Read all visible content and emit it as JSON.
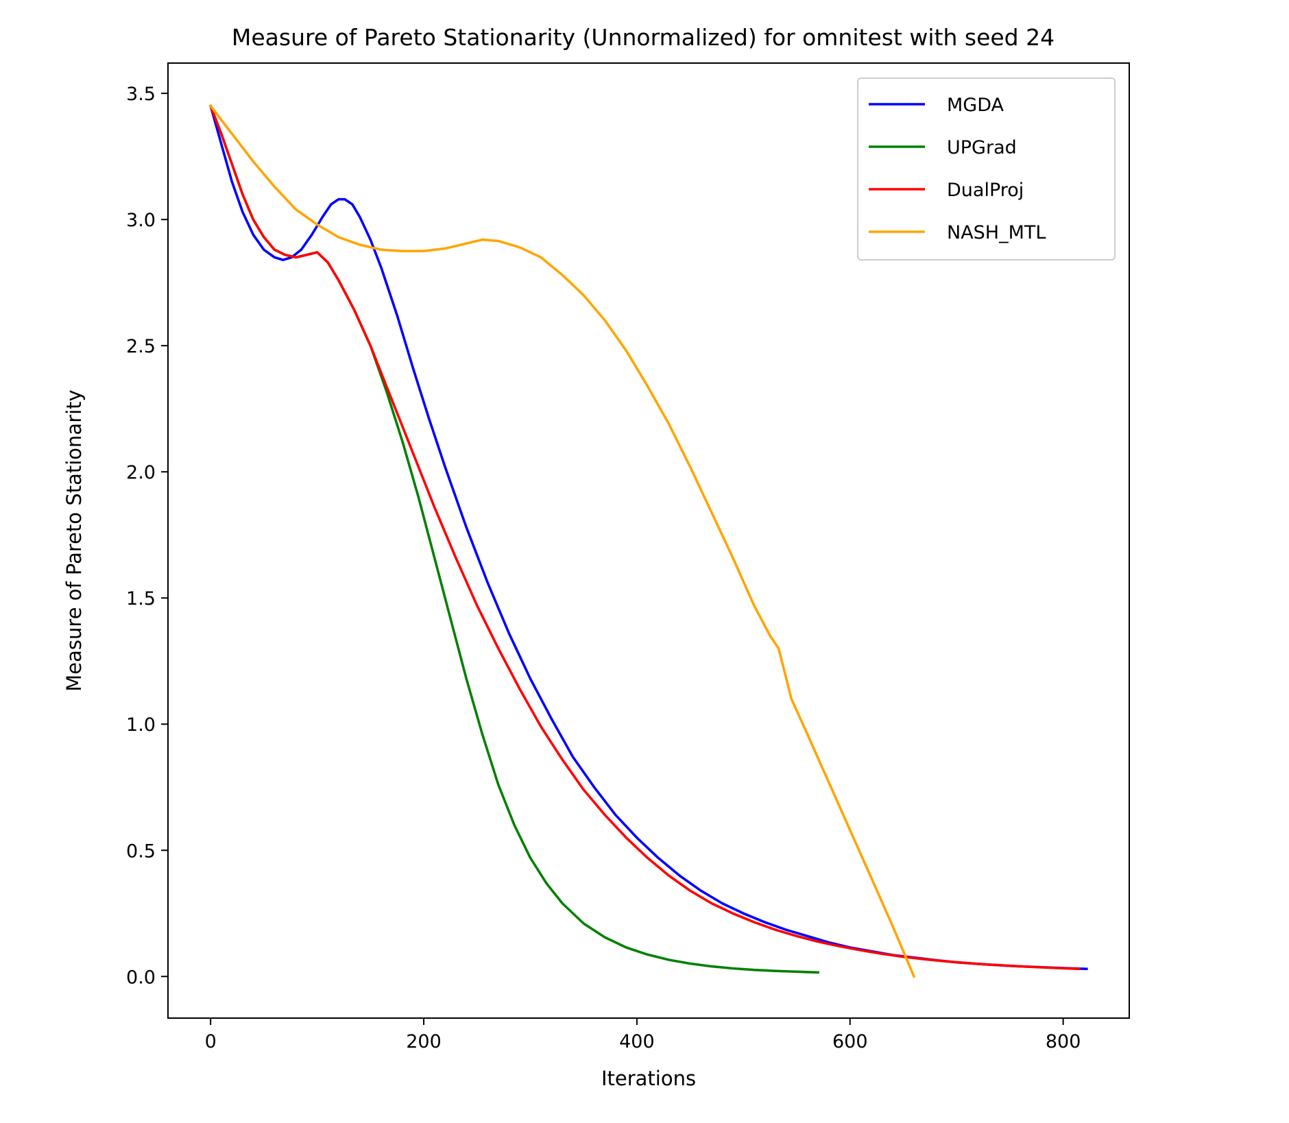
{
  "chart_data": {
    "type": "line",
    "title": "Measure of Pareto Stationarity (Unnormalized) for omnitest with seed 24",
    "xlabel": "Iterations",
    "ylabel": "Measure of Pareto Stationarity",
    "xlim": [
      -40,
      862
    ],
    "ylim": [
      -0.165,
      3.62
    ],
    "xticks": [
      0,
      200,
      400,
      600,
      800
    ],
    "xtick_labels": [
      "0",
      "200",
      "400",
      "600",
      "800"
    ],
    "yticks": [
      0.0,
      0.5,
      1.0,
      1.5,
      2.0,
      2.5,
      3.0,
      3.5
    ],
    "ytick_labels": [
      "0.0",
      "0.5",
      "1.0",
      "1.5",
      "2.0",
      "2.5",
      "3.0",
      "3.5"
    ],
    "grid": false,
    "legend_position": "top-right",
    "series": [
      {
        "name": "MGDA",
        "color": "#0000ff",
        "points": [
          [
            0,
            3.45
          ],
          [
            10,
            3.3
          ],
          [
            20,
            3.15
          ],
          [
            30,
            3.03
          ],
          [
            40,
            2.94
          ],
          [
            50,
            2.88
          ],
          [
            60,
            2.85
          ],
          [
            68,
            2.84
          ],
          [
            76,
            2.85
          ],
          [
            85,
            2.88
          ],
          [
            95,
            2.94
          ],
          [
            105,
            3.01
          ],
          [
            113,
            3.06
          ],
          [
            120,
            3.08
          ],
          [
            126,
            3.08
          ],
          [
            133,
            3.06
          ],
          [
            140,
            3.01
          ],
          [
            150,
            2.92
          ],
          [
            160,
            2.81
          ],
          [
            175,
            2.62
          ],
          [
            190,
            2.41
          ],
          [
            205,
            2.21
          ],
          [
            220,
            2.02
          ],
          [
            240,
            1.78
          ],
          [
            260,
            1.56
          ],
          [
            280,
            1.36
          ],
          [
            300,
            1.18
          ],
          [
            320,
            1.02
          ],
          [
            340,
            0.87
          ],
          [
            360,
            0.75
          ],
          [
            380,
            0.64
          ],
          [
            400,
            0.55
          ],
          [
            420,
            0.47
          ],
          [
            440,
            0.4
          ],
          [
            460,
            0.34
          ],
          [
            480,
            0.29
          ],
          [
            500,
            0.25
          ],
          [
            520,
            0.215
          ],
          [
            540,
            0.185
          ],
          [
            560,
            0.16
          ],
          [
            580,
            0.135
          ],
          [
            600,
            0.115
          ],
          [
            620,
            0.1
          ],
          [
            640,
            0.085
          ],
          [
            660,
            0.075
          ],
          [
            680,
            0.065
          ],
          [
            700,
            0.056
          ],
          [
            730,
            0.047
          ],
          [
            760,
            0.04
          ],
          [
            790,
            0.035
          ],
          [
            822,
            0.03
          ]
        ]
      },
      {
        "name": "UPGrad",
        "color": "#008000",
        "points": [
          [
            0,
            3.45
          ],
          [
            10,
            3.34
          ],
          [
            20,
            3.22
          ],
          [
            30,
            3.1
          ],
          [
            40,
            3.0
          ],
          [
            50,
            2.93
          ],
          [
            60,
            2.88
          ],
          [
            70,
            2.86
          ],
          [
            80,
            2.85
          ],
          [
            90,
            2.86
          ],
          [
            100,
            2.87
          ],
          [
            110,
            2.83
          ],
          [
            120,
            2.76
          ],
          [
            135,
            2.64
          ],
          [
            150,
            2.5
          ],
          [
            165,
            2.32
          ],
          [
            180,
            2.12
          ],
          [
            195,
            1.9
          ],
          [
            210,
            1.66
          ],
          [
            225,
            1.42
          ],
          [
            240,
            1.18
          ],
          [
            255,
            0.96
          ],
          [
            270,
            0.76
          ],
          [
            285,
            0.6
          ],
          [
            300,
            0.47
          ],
          [
            315,
            0.37
          ],
          [
            330,
            0.29
          ],
          [
            350,
            0.21
          ],
          [
            370,
            0.155
          ],
          [
            390,
            0.115
          ],
          [
            410,
            0.087
          ],
          [
            430,
            0.066
          ],
          [
            450,
            0.051
          ],
          [
            470,
            0.04
          ],
          [
            490,
            0.032
          ],
          [
            510,
            0.026
          ],
          [
            530,
            0.022
          ],
          [
            550,
            0.019
          ],
          [
            570,
            0.016
          ]
        ]
      },
      {
        "name": "DualProj",
        "color": "#ff0000",
        "points": [
          [
            0,
            3.45
          ],
          [
            10,
            3.34
          ],
          [
            20,
            3.22
          ],
          [
            30,
            3.1
          ],
          [
            40,
            3.0
          ],
          [
            50,
            2.93
          ],
          [
            60,
            2.88
          ],
          [
            70,
            2.86
          ],
          [
            80,
            2.85
          ],
          [
            90,
            2.86
          ],
          [
            100,
            2.87
          ],
          [
            110,
            2.83
          ],
          [
            120,
            2.76
          ],
          [
            135,
            2.64
          ],
          [
            150,
            2.5
          ],
          [
            165,
            2.34
          ],
          [
            180,
            2.18
          ],
          [
            195,
            2.02
          ],
          [
            210,
            1.86
          ],
          [
            230,
            1.66
          ],
          [
            250,
            1.47
          ],
          [
            270,
            1.3
          ],
          [
            290,
            1.14
          ],
          [
            310,
            0.99
          ],
          [
            330,
            0.86
          ],
          [
            350,
            0.74
          ],
          [
            370,
            0.64
          ],
          [
            390,
            0.55
          ],
          [
            410,
            0.47
          ],
          [
            430,
            0.4
          ],
          [
            450,
            0.34
          ],
          [
            470,
            0.29
          ],
          [
            490,
            0.25
          ],
          [
            510,
            0.215
          ],
          [
            530,
            0.185
          ],
          [
            550,
            0.16
          ],
          [
            570,
            0.138
          ],
          [
            590,
            0.12
          ],
          [
            610,
            0.104
          ],
          [
            630,
            0.09
          ],
          [
            650,
            0.078
          ],
          [
            670,
            0.068
          ],
          [
            690,
            0.06
          ],
          [
            720,
            0.05
          ],
          [
            750,
            0.042
          ],
          [
            780,
            0.036
          ],
          [
            815,
            0.03
          ]
        ]
      },
      {
        "name": "NASH_MTL",
        "color": "#ffa500",
        "points": [
          [
            0,
            3.45
          ],
          [
            20,
            3.34
          ],
          [
            40,
            3.23
          ],
          [
            60,
            3.13
          ],
          [
            80,
            3.04
          ],
          [
            100,
            2.98
          ],
          [
            120,
            2.93
          ],
          [
            140,
            2.9
          ],
          [
            160,
            2.88
          ],
          [
            180,
            2.875
          ],
          [
            200,
            2.875
          ],
          [
            220,
            2.885
          ],
          [
            240,
            2.905
          ],
          [
            255,
            2.92
          ],
          [
            270,
            2.915
          ],
          [
            290,
            2.89
          ],
          [
            310,
            2.85
          ],
          [
            330,
            2.78
          ],
          [
            350,
            2.7
          ],
          [
            370,
            2.6
          ],
          [
            390,
            2.48
          ],
          [
            410,
            2.34
          ],
          [
            430,
            2.19
          ],
          [
            450,
            2.02
          ],
          [
            470,
            1.84
          ],
          [
            490,
            1.66
          ],
          [
            510,
            1.47
          ],
          [
            525,
            1.35
          ],
          [
            533,
            1.3
          ],
          [
            545,
            1.1
          ],
          [
            560,
            0.96
          ],
          [
            580,
            0.77
          ],
          [
            600,
            0.58
          ],
          [
            620,
            0.39
          ],
          [
            640,
            0.2
          ],
          [
            650,
            0.1
          ],
          [
            660,
            0.0
          ]
        ]
      }
    ]
  }
}
